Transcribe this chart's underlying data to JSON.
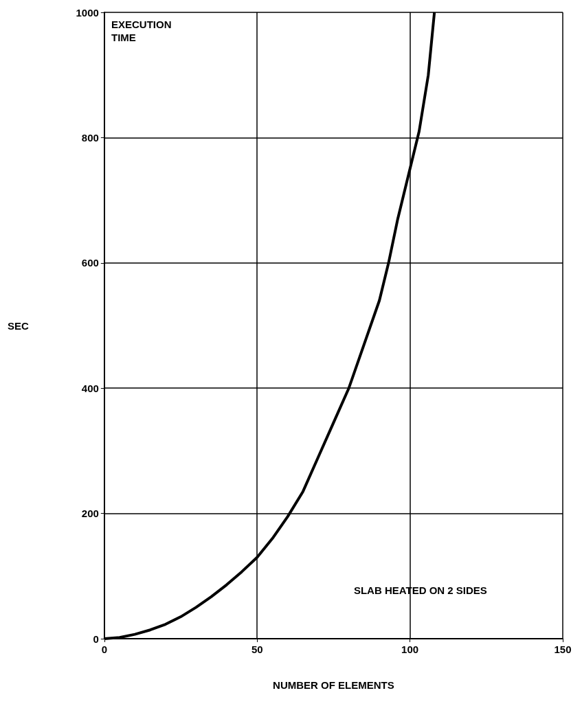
{
  "chart_data": {
    "type": "line",
    "xlabel": "NUMBER OF ELEMENTS",
    "ylabel": "SEC",
    "annotations": [
      "EXECUTION\nTIME",
      "SLAB HEATED ON 2 SIDES"
    ],
    "series": [
      {
        "color": "#000000",
        "x": [
          0,
          5,
          10,
          15,
          20,
          25,
          30,
          35,
          40,
          45,
          50,
          55,
          60,
          65,
          70,
          75,
          80,
          85,
          90,
          93,
          96,
          100,
          103,
          106,
          108
        ],
        "values": [
          0,
          2,
          7,
          14,
          23,
          35,
          50,
          67,
          86,
          107,
          130,
          160,
          195,
          235,
          290,
          345,
          400,
          470,
          540,
          600,
          670,
          750,
          810,
          900,
          1000
        ]
      }
    ],
    "xlim": [
      0,
      150
    ],
    "xticks": [
      0,
      50,
      100,
      150
    ],
    "ylim": [
      0,
      1000
    ],
    "yticks": [
      0,
      200,
      400,
      600,
      800,
      1000
    ],
    "grid": true,
    "marker": "none",
    "line_style": "solid"
  }
}
